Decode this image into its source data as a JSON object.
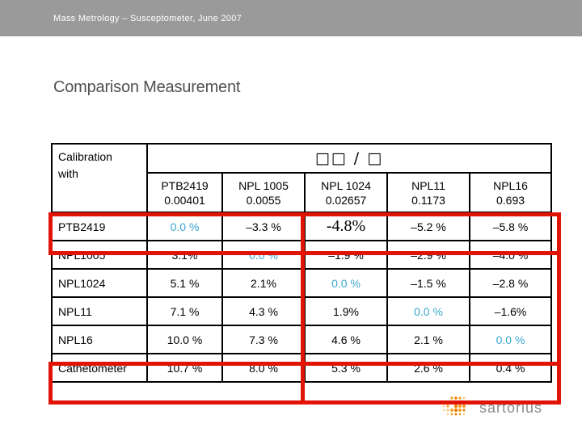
{
  "header_bar": {
    "text": "Mass Metrology – Susceptometer, June 2007",
    "bg": "#9a9a9a"
  },
  "title": "Comparison Measurement",
  "table": {
    "corner_label": [
      "Calibration",
      "with"
    ],
    "span_header": "□□ / □",
    "columns": [
      {
        "name": "PTB2419",
        "value": "0.00401"
      },
      {
        "name": "NPL 1005",
        "value": "0.0055"
      },
      {
        "name": "NPL 1024",
        "value": "0.02657"
      },
      {
        "name": "NPL11",
        "value": "0.1173"
      },
      {
        "name": "NPL16",
        "value": "0.693"
      }
    ],
    "rows": [
      {
        "label": "PTB2419",
        "cells": [
          "0.0 %",
          "–3.3 %",
          "-4.8%",
          "–5.2 %",
          "–5.8 %"
        ]
      },
      {
        "label": "NPL1005",
        "cells": [
          "3.1%",
          "0.0 %",
          "–1.9 %",
          "–2.9 %",
          "–4.0 %"
        ]
      },
      {
        "label": "NPL1024",
        "cells": [
          "5.1 %",
          "2.1%",
          "0.0 %",
          "–1.5 %",
          "–2.8 %"
        ]
      },
      {
        "label": "NPL11",
        "cells": [
          "7.1 %",
          "4.3 %",
          "1.9%",
          "0.0 %",
          "–1.6%"
        ]
      },
      {
        "label": "NPL16",
        "cells": [
          "10.0 %",
          "7.3 %",
          "4.6 %",
          "2.1 %",
          "0.0 %"
        ]
      },
      {
        "label": "Cathetometer",
        "cells": [
          "10.7 %",
          "8.0 %",
          "5.3 %",
          "2.6 %",
          "0.4 %"
        ]
      }
    ],
    "diagonal_blue_cells": [
      [
        0,
        0
      ],
      [
        1,
        1
      ],
      [
        2,
        2
      ],
      [
        3,
        3
      ],
      [
        4,
        4
      ]
    ],
    "emphasized_cell": {
      "row": 0,
      "col": 2
    },
    "colors": {
      "highlight_red": "#e11305",
      "diagonal_blue": "#3aa6cd"
    }
  },
  "logo": {
    "text": "sartorius",
    "dot_colors": [
      "#ef8200",
      "#f5a228",
      "#f9c97e"
    ]
  }
}
